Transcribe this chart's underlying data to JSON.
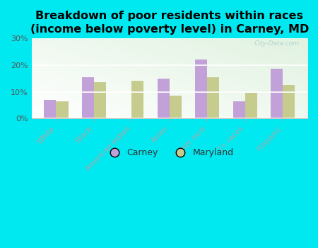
{
  "title": "Breakdown of poor residents within races\n(income below poverty level) in Carney, MD",
  "categories": [
    "White",
    "Black",
    "American Indian",
    "Asian",
    "Other race",
    "2+ races",
    "Hispanic"
  ],
  "carney": [
    7,
    15.5,
    0,
    15,
    22,
    6.5,
    18.5
  ],
  "maryland": [
    6.5,
    13.5,
    14,
    8.5,
    15.5,
    9.5,
    12.5
  ],
  "carney_color": "#c2a0d8",
  "maryland_color": "#c5cc8e",
  "outer_background": "#00e8f0",
  "ylim": [
    0,
    30
  ],
  "yticks": [
    0,
    10,
    20,
    30
  ],
  "title_fontsize": 11.5,
  "legend_labels": [
    "Carney",
    "Maryland"
  ],
  "watermark": "City-Data.com"
}
